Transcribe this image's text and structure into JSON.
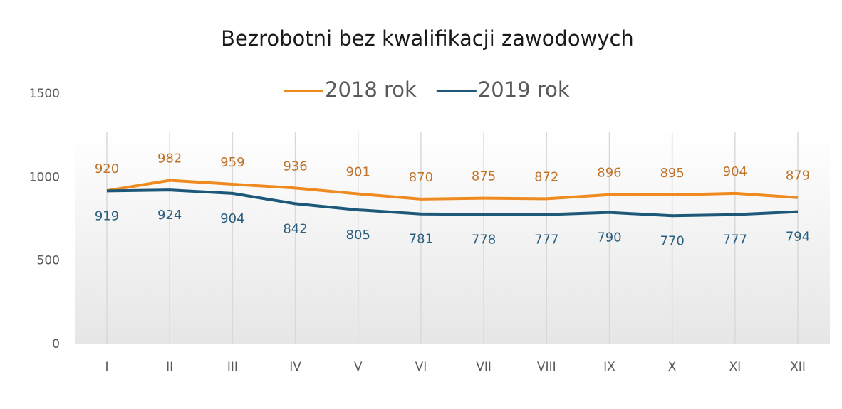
{
  "chart_data": {
    "type": "line",
    "title": "Bezrobotni bez kwalifikacji zawodowych",
    "categories": [
      "I",
      "II",
      "III",
      "IV",
      "V",
      "VI",
      "VII",
      "VIII",
      "IX",
      "X",
      "XI",
      "XII"
    ],
    "series": [
      {
        "name": "2018 rok",
        "color": "#ee8a1f",
        "label_color": "#c0732a",
        "values": [
          920,
          982,
          959,
          936,
          901,
          870,
          875,
          872,
          896,
          895,
          904,
          879
        ]
      },
      {
        "name": "2019 rok",
        "color": "#1e5878",
        "label_color": "#2b5f80",
        "values": [
          919,
          924,
          904,
          842,
          805,
          781,
          778,
          777,
          790,
          770,
          777,
          794
        ]
      }
    ],
    "ylim": [
      0,
      1500
    ],
    "yticks": [
      0,
      500,
      1000,
      1500
    ],
    "grid": "vertical",
    "legend": "top"
  }
}
